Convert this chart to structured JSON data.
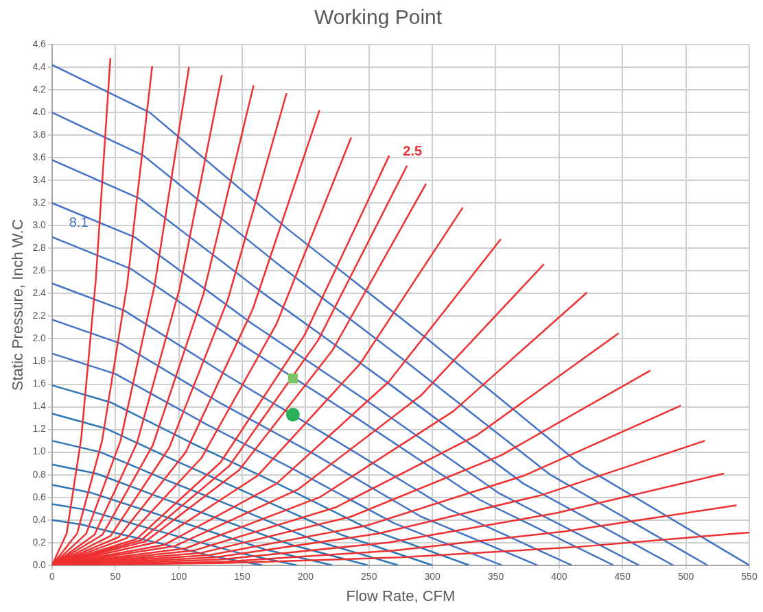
{
  "chart_data": {
    "type": "line",
    "title": "Working Point",
    "xlabel": "Flow Rate, CFM",
    "ylabel": "Static Pressure, Inch W.C",
    "xlim": [
      0,
      550
    ],
    "xticks": [
      0,
      50,
      100,
      150,
      200,
      250,
      300,
      350,
      400,
      450,
      500,
      550
    ],
    "ylim": [
      0,
      4.6
    ],
    "yticks": [
      {
        "value": 0,
        "label": "0.0"
      },
      0.2,
      0.4,
      0.6,
      0.8,
      {
        "value": 1,
        "label": "1.0"
      },
      1.2,
      1.4,
      1.6,
      1.8,
      {
        "value": 2,
        "label": "2.0"
      },
      2.2,
      2.4,
      2.6,
      2.8,
      {
        "value": 3,
        "label": "3.0"
      },
      3.2,
      3.4,
      3.6,
      3.8,
      {
        "value": 4,
        "label": "4.0"
      },
      4.2,
      4.4,
      4.6
    ],
    "grid": true,
    "legend": false,
    "marker": "none",
    "series": [
      {
        "color": "#4472c4",
        "x": [
          0,
          77,
          187,
          297,
          418,
          550
        ],
        "values": [
          4.42,
          4.0,
          2.96,
          1.99,
          0.88,
          0
        ]
      },
      {
        "color": "#4472c4",
        "x": [
          0,
          72,
          176,
          279,
          393,
          517
        ],
        "values": [
          4.0,
          3.62,
          2.68,
          1.8,
          0.8,
          0
        ]
      },
      {
        "color": "#4472c4",
        "x": [
          0,
          69,
          167,
          265,
          372,
          490
        ],
        "values": [
          3.58,
          3.24,
          2.4,
          1.61,
          0.72,
          0
        ]
      },
      {
        "color": "#4472c4",
        "x": [
          0,
          65,
          157,
          250,
          352,
          463
        ],
        "values": [
          3.2,
          2.9,
          2.14,
          1.44,
          0.64,
          0
        ]
      },
      {
        "name": "8.1",
        "color": "#4472c4",
        "x": [
          0,
          62,
          151,
          239,
          337,
          443
        ],
        "values": [
          2.9,
          2.62,
          1.94,
          1.31,
          0.58,
          0
        ]
      },
      {
        "color": "#4472c4",
        "x": [
          0,
          57,
          139,
          221,
          312,
          410
        ],
        "values": [
          2.49,
          2.25,
          1.67,
          1.12,
          0.5,
          0
        ]
      },
      {
        "color": "#4472c4",
        "x": [
          0,
          54,
          130,
          207,
          291,
          383
        ],
        "values": [
          2.17,
          1.96,
          1.45,
          0.98,
          0.43,
          0
        ]
      },
      {
        "color": "#4472c4",
        "x": [
          0,
          50,
          121,
          192,
          270,
          355
        ],
        "values": [
          1.87,
          1.69,
          1.25,
          0.84,
          0.37,
          0
        ]
      },
      {
        "color": "#2e75b6",
        "x": [
          0,
          46,
          112,
          178,
          250,
          329
        ],
        "values": [
          1.59,
          1.44,
          1.07,
          0.72,
          0.32,
          0
        ]
      },
      {
        "color": "#2e75b6",
        "x": [
          0,
          42,
          102,
          162,
          228,
          300
        ],
        "values": [
          1.34,
          1.21,
          0.9,
          0.6,
          0.27,
          0
        ]
      },
      {
        "color": "#2e75b6",
        "x": [
          0,
          38,
          93,
          147,
          207,
          273
        ],
        "values": [
          1.1,
          1.0,
          0.74,
          0.5,
          0.22,
          0
        ]
      },
      {
        "color": "#2e75b6",
        "x": [
          0,
          35,
          85,
          134,
          189,
          249
        ],
        "values": [
          0.89,
          0.81,
          0.6,
          0.4,
          0.18,
          0
        ]
      },
      {
        "color": "#2e75b6",
        "x": [
          0,
          31,
          75,
          119,
          168,
          221
        ],
        "values": [
          0.71,
          0.64,
          0.48,
          0.32,
          0.14,
          0
        ]
      },
      {
        "color": "#2e75b6",
        "x": [
          0,
          27,
          66,
          104,
          147,
          193
        ],
        "values": [
          0.54,
          0.49,
          0.36,
          0.24,
          0.11,
          0
        ]
      },
      {
        "color": "#2e75b6",
        "x": [
          0,
          23,
          56,
          90,
          126,
          166
        ],
        "values": [
          0.4,
          0.36,
          0.27,
          0.18,
          0.08,
          0
        ]
      },
      {
        "color": "#ee3030",
        "x": [
          0,
          11.5,
          23,
          34.5,
          46
        ],
        "values": [
          0,
          0.28,
          1.12,
          2.52,
          4.48
        ]
      },
      {
        "color": "#ee3030",
        "x": [
          0,
          19.75,
          39.5,
          59.25,
          79
        ],
        "values": [
          0,
          0.28,
          1.1,
          2.48,
          4.41
        ]
      },
      {
        "color": "#ee3030",
        "x": [
          0,
          27,
          54,
          81,
          108
        ],
        "values": [
          0,
          0.28,
          1.1,
          2.48,
          4.4
        ]
      },
      {
        "color": "#ee3030",
        "x": [
          0,
          33.5,
          67,
          100.5,
          134
        ],
        "values": [
          0,
          0.27,
          1.08,
          2.44,
          4.33
        ]
      },
      {
        "color": "#ee3030",
        "x": [
          0,
          39.75,
          79.5,
          119.25,
          159
        ],
        "values": [
          0,
          0.27,
          1.06,
          2.39,
          4.24
        ]
      },
      {
        "color": "#ee3030",
        "x": [
          0,
          46.25,
          92.5,
          138.75,
          185
        ],
        "values": [
          0,
          0.26,
          1.04,
          2.35,
          4.17
        ]
      },
      {
        "color": "#ee3030",
        "x": [
          0,
          52.75,
          105.5,
          158.25,
          211
        ],
        "values": [
          0,
          0.25,
          1.0,
          2.26,
          4.02
        ]
      },
      {
        "color": "#ee3030",
        "x": [
          0,
          59,
          118,
          177,
          236
        ],
        "values": [
          0,
          0.24,
          0.95,
          2.13,
          3.78
        ]
      },
      {
        "color": "#ee3030",
        "x": [
          0,
          66.5,
          133,
          199.5,
          266
        ],
        "values": [
          0,
          0.23,
          0.91,
          2.04,
          3.62
        ]
      },
      {
        "name": "2.5",
        "color": "#ee3030",
        "x": [
          0,
          70,
          140,
          210,
          280
        ],
        "values": [
          0,
          0.22,
          0.88,
          1.99,
          3.53
        ]
      },
      {
        "color": "#ee3030",
        "x": [
          0,
          73.75,
          147.5,
          221.25,
          295
        ],
        "values": [
          0,
          0.21,
          0.84,
          1.9,
          3.37
        ]
      },
      {
        "color": "#ee3030",
        "x": [
          0,
          81,
          162,
          243,
          324
        ],
        "values": [
          0,
          0.2,
          0.79,
          1.78,
          3.16
        ]
      },
      {
        "color": "#ee3030",
        "x": [
          0,
          88.5,
          177,
          265.5,
          354
        ],
        "values": [
          0,
          0.18,
          0.72,
          1.62,
          2.88
        ]
      },
      {
        "color": "#ee3030",
        "x": [
          0,
          97,
          194,
          291,
          388
        ],
        "values": [
          0,
          0.17,
          0.67,
          1.5,
          2.66
        ]
      },
      {
        "color": "#ee3030",
        "x": [
          0,
          105.5,
          211,
          316.5,
          422
        ],
        "values": [
          0,
          0.15,
          0.6,
          1.36,
          2.41
        ]
      },
      {
        "color": "#ee3030",
        "x": [
          0,
          111.75,
          223.5,
          335.25,
          447
        ],
        "values": [
          0,
          0.13,
          0.51,
          1.15,
          2.05
        ]
      },
      {
        "color": "#ee3030",
        "x": [
          0,
          118,
          236,
          354,
          472
        ],
        "values": [
          0,
          0.11,
          0.43,
          0.97,
          1.72
        ]
      },
      {
        "color": "#ee3030",
        "x": [
          0,
          124,
          248,
          372,
          496
        ],
        "values": [
          0,
          0.09,
          0.35,
          0.79,
          1.41
        ]
      },
      {
        "color": "#ee3030",
        "x": [
          0,
          128.75,
          257.5,
          386.25,
          515
        ],
        "values": [
          0,
          0.07,
          0.28,
          0.62,
          1.1
        ]
      },
      {
        "color": "#ee3030",
        "x": [
          0,
          132.5,
          265,
          397.5,
          530
        ],
        "values": [
          0,
          0.05,
          0.2,
          0.46,
          0.81
        ]
      },
      {
        "color": "#ee3030",
        "x": [
          0,
          135,
          270,
          405,
          540
        ],
        "values": [
          0,
          0.03,
          0.13,
          0.3,
          0.53
        ]
      },
      {
        "color": "#ee3030",
        "x": [
          0,
          137.5,
          275,
          412.5,
          550
        ],
        "values": [
          0,
          0.02,
          0.07,
          0.16,
          0.29
        ]
      },
      {
        "type": "scatter",
        "marker": "square",
        "color": "#7dc462",
        "x": [
          190
        ],
        "values": [
          1.65
        ]
      },
      {
        "type": "scatter",
        "marker": "circle",
        "color": "#2bb05a",
        "x": [
          190
        ],
        "values": [
          1.33
        ]
      }
    ]
  }
}
